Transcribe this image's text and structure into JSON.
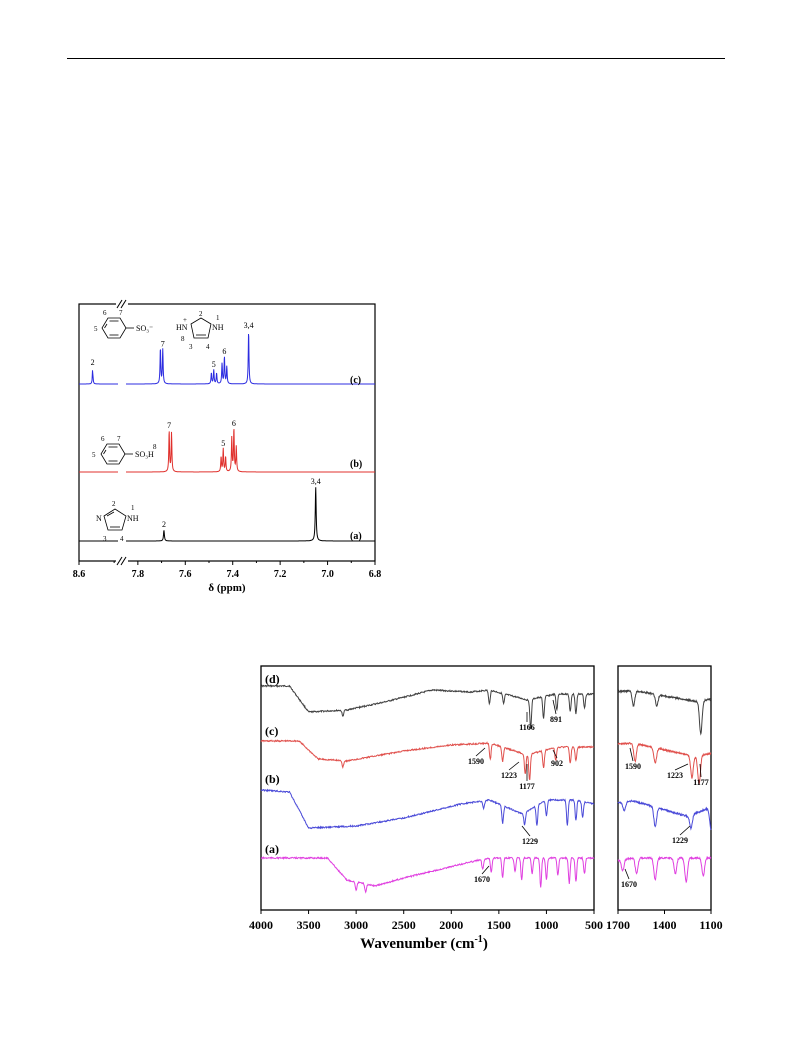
{
  "chart_data": [
    {
      "type": "line",
      "subtype": "1H NMR spectra",
      "xlabel": "δ (ppm)",
      "xlim": [
        8.6,
        6.8
      ],
      "x_axis": "reversed, broken between 8.4 and 7.85",
      "x_ticks": [
        "8.6",
        "7.8",
        "7.6",
        "7.4",
        "7.2",
        "7.0",
        "6.8"
      ],
      "grid": false,
      "series": [
        {
          "name": "(a)",
          "color": "#000000",
          "peaks": [
            {
              "ppm": 7.69,
              "height": 0.2,
              "label": "2"
            },
            {
              "ppm": 7.05,
              "height": 1.0,
              "label": "3,4"
            }
          ]
        },
        {
          "name": "(b)",
          "color": "#e0302c",
          "peaks": [
            {
              "ppm": 7.668,
              "height": 0.82,
              "label": "7"
            },
            {
              "ppm": 7.658,
              "height": 0.78,
              "label": ""
            },
            {
              "ppm": 7.449,
              "height": 0.3,
              "label": ""
            },
            {
              "ppm": 7.44,
              "height": 0.46,
              "label": "5"
            },
            {
              "ppm": 7.43,
              "height": 0.3,
              "label": ""
            },
            {
              "ppm": 7.404,
              "height": 0.68,
              "label": ""
            },
            {
              "ppm": 7.395,
              "height": 0.86,
              "label": "6"
            },
            {
              "ppm": 7.385,
              "height": 0.5,
              "label": ""
            }
          ]
        },
        {
          "name": "(c)",
          "color": "#2c2ce0",
          "peaks": [
            {
              "ppm": 8.53,
              "height": 0.3,
              "label": "2"
            },
            {
              "ppm": 7.705,
              "height": 0.66,
              "label": ""
            },
            {
              "ppm": 7.695,
              "height": 0.64,
              "label": "7"
            },
            {
              "ppm": 7.49,
              "height": 0.2,
              "label": ""
            },
            {
              "ppm": 7.48,
              "height": 0.26,
              "label": "5"
            },
            {
              "ppm": 7.468,
              "height": 0.2,
              "label": ""
            },
            {
              "ppm": 7.445,
              "height": 0.38,
              "label": ""
            },
            {
              "ppm": 7.435,
              "height": 0.5,
              "label": "6"
            },
            {
              "ppm": 7.425,
              "height": 0.32,
              "label": ""
            },
            {
              "ppm": 7.333,
              "height": 0.98,
              "label": "3,4"
            }
          ]
        }
      ],
      "structures": {
        "a": {
          "numbers": [
            "2",
            "1",
            "3",
            "4"
          ],
          "atoms": [
            "N",
            "NH"
          ]
        },
        "b": {
          "numbers": [
            "6",
            "7",
            "5",
            "8"
          ],
          "group": "SO₃H"
        },
        "c": {
          "numbers": [
            "6",
            "7",
            "5",
            "2",
            "1",
            "8",
            "3",
            "4"
          ],
          "group": "SO₃⁻",
          "atoms": [
            "HN",
            "+",
            "NH"
          ]
        }
      }
    },
    {
      "type": "line",
      "subtype": "FT-IR spectra",
      "xlabel": "Wavenumber (cm",
      "xlabel_sup": "-1",
      "xlabel_end": ")",
      "panels": [
        {
          "xlim": [
            4000,
            500
          ],
          "x_ticks": [
            "4000",
            "3500",
            "3000",
            "2500",
            "2000",
            "1500",
            "1000",
            "500"
          ]
        },
        {
          "xlim": [
            1700,
            1100
          ],
          "x_ticks": [
            "1700",
            "1400",
            "1100"
          ]
        }
      ],
      "grid": false,
      "series": [
        {
          "name": "(d)",
          "color": "#404040",
          "annotations": [
            "1166",
            "891"
          ],
          "zoom_annotations": []
        },
        {
          "name": "(c)",
          "color": "#e0504c",
          "annotations": [
            "1590",
            "1223",
            "1177",
            "902"
          ],
          "zoom_annotations": [
            "1590",
            "1223",
            "1177"
          ]
        },
        {
          "name": "(b)",
          "color": "#4a4ad8",
          "annotations": [
            "1229"
          ],
          "zoom_annotations": [
            "1229"
          ]
        },
        {
          "name": "(a)",
          "color": "#e040e0",
          "annotations": [
            "1670"
          ],
          "zoom_annotations": [
            "1670"
          ]
        }
      ]
    }
  ]
}
